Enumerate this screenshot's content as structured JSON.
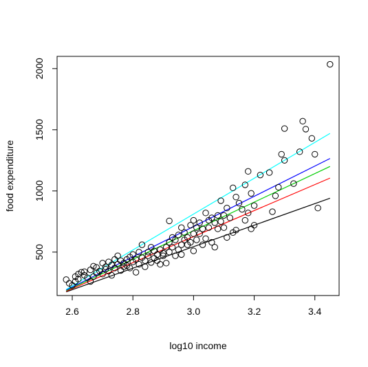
{
  "chart_data": {
    "type": "scatter",
    "xlabel": "log10 income",
    "ylabel": "food expenditure",
    "xlim": [
      2.55,
      3.48
    ],
    "ylim": [
      145,
      2100
    ],
    "xticks": [
      2.6,
      2.8,
      3.0,
      3.2,
      3.4
    ],
    "xtick_labels": [
      "2.6",
      "2.8",
      "3.0",
      "3.2",
      "3.4"
    ],
    "yticks": [
      500,
      1000,
      1500,
      2000
    ],
    "ytick_labels": [
      "500",
      "1000",
      "1500",
      "2000"
    ],
    "grid": false,
    "legend": "none",
    "points": [
      [
        2.58,
        275
      ],
      [
        2.59,
        245
      ],
      [
        2.6,
        228
      ],
      [
        2.61,
        260
      ],
      [
        2.61,
        300
      ],
      [
        2.62,
        320
      ],
      [
        2.62,
        280
      ],
      [
        2.63,
        335
      ],
      [
        2.64,
        310
      ],
      [
        2.64,
        340
      ],
      [
        2.65,
        290
      ],
      [
        2.66,
        260
      ],
      [
        2.66,
        355
      ],
      [
        2.67,
        385
      ],
      [
        2.67,
        300
      ],
      [
        2.68,
        330
      ],
      [
        2.68,
        375
      ],
      [
        2.69,
        345
      ],
      [
        2.7,
        410
      ],
      [
        2.7,
        320
      ],
      [
        2.71,
        360
      ],
      [
        2.71,
        380
      ],
      [
        2.72,
        420
      ],
      [
        2.72,
        345
      ],
      [
        2.73,
        395
      ],
      [
        2.73,
        310
      ],
      [
        2.74,
        440
      ],
      [
        2.74,
        370
      ],
      [
        2.75,
        470
      ],
      [
        2.75,
        400
      ],
      [
        2.76,
        350
      ],
      [
        2.76,
        430
      ],
      [
        2.77,
        380
      ],
      [
        2.77,
        410
      ],
      [
        2.78,
        440
      ],
      [
        2.78,
        390
      ],
      [
        2.79,
        460
      ],
      [
        2.79,
        370
      ],
      [
        2.8,
        420
      ],
      [
        2.8,
        480
      ],
      [
        2.81,
        335
      ],
      [
        2.81,
        440
      ],
      [
        2.82,
        400
      ],
      [
        2.82,
        500
      ],
      [
        2.83,
        455
      ],
      [
        2.83,
        560
      ],
      [
        2.84,
        430
      ],
      [
        2.84,
        380
      ],
      [
        2.85,
        500
      ],
      [
        2.85,
        470
      ],
      [
        2.86,
        415
      ],
      [
        2.86,
        540
      ],
      [
        2.87,
        450
      ],
      [
        2.87,
        510
      ],
      [
        2.88,
        480
      ],
      [
        2.88,
        430
      ],
      [
        2.89,
        520
      ],
      [
        2.89,
        400
      ],
      [
        2.9,
        490
      ],
      [
        2.9,
        470
      ],
      [
        2.91,
        540
      ],
      [
        2.91,
        410
      ],
      [
        2.92,
        580
      ],
      [
        2.92,
        500
      ],
      [
        2.92,
        755
      ],
      [
        2.93,
        620
      ],
      [
        2.93,
        540
      ],
      [
        2.94,
        600
      ],
      [
        2.94,
        470
      ],
      [
        2.95,
        640
      ],
      [
        2.95,
        520
      ],
      [
        2.96,
        560
      ],
      [
        2.96,
        700
      ],
      [
        2.96,
        480
      ],
      [
        2.97,
        600
      ],
      [
        2.97,
        660
      ],
      [
        2.98,
        560
      ],
      [
        2.98,
        620
      ],
      [
        2.99,
        720
      ],
      [
        2.99,
        580
      ],
      [
        3.0,
        650
      ],
      [
        3.0,
        760
      ],
      [
        3.0,
        510
      ],
      [
        3.01,
        700
      ],
      [
        3.01,
        600
      ],
      [
        3.02,
        740
      ],
      [
        3.02,
        650
      ],
      [
        3.03,
        560
      ],
      [
        3.03,
        690
      ],
      [
        3.04,
        820
      ],
      [
        3.04,
        610
      ],
      [
        3.05,
        760
      ],
      [
        3.05,
        700
      ],
      [
        3.06,
        580
      ],
      [
        3.06,
        780
      ],
      [
        3.07,
        740
      ],
      [
        3.07,
        540
      ],
      [
        3.08,
        800
      ],
      [
        3.08,
        690
      ],
      [
        3.09,
        920
      ],
      [
        3.09,
        750
      ],
      [
        3.1,
        700
      ],
      [
        3.1,
        800
      ],
      [
        3.11,
        860
      ],
      [
        3.11,
        620
      ],
      [
        3.12,
        780
      ],
      [
        3.13,
        1025
      ],
      [
        3.13,
        660
      ],
      [
        3.14,
        950
      ],
      [
        3.14,
        680
      ],
      [
        3.15,
        900
      ],
      [
        3.16,
        850
      ],
      [
        3.17,
        1050
      ],
      [
        3.17,
        760
      ],
      [
        3.18,
        820
      ],
      [
        3.18,
        1160
      ],
      [
        3.19,
        980
      ],
      [
        3.19,
        690
      ],
      [
        3.2,
        880
      ],
      [
        3.2,
        720
      ],
      [
        3.22,
        1130
      ],
      [
        3.25,
        1150
      ],
      [
        3.26,
        830
      ],
      [
        3.27,
        960
      ],
      [
        3.28,
        1030
      ],
      [
        3.29,
        1300
      ],
      [
        3.3,
        1250
      ],
      [
        3.3,
        1510
      ],
      [
        3.33,
        1060
      ],
      [
        3.35,
        1320
      ],
      [
        3.36,
        1570
      ],
      [
        3.37,
        1505
      ],
      [
        3.39,
        1430
      ],
      [
        3.4,
        1300
      ],
      [
        3.41,
        860
      ],
      [
        3.45,
        2035
      ]
    ],
    "lines": [
      {
        "color": "#000000",
        "x": [
          2.58,
          3.45
        ],
        "y": [
          175,
          940
        ]
      },
      {
        "color": "#ff0000",
        "x": [
          2.58,
          3.45
        ],
        "y": [
          180,
          1105
        ]
      },
      {
        "color": "#00cd00",
        "x": [
          2.58,
          3.45
        ],
        "y": [
          185,
          1200
        ]
      },
      {
        "color": "#0000ff",
        "x": [
          2.58,
          3.45
        ],
        "y": [
          190,
          1265
        ]
      },
      {
        "color": "#00ffff",
        "x": [
          2.58,
          3.45
        ],
        "y": [
          195,
          1470
        ]
      }
    ]
  }
}
